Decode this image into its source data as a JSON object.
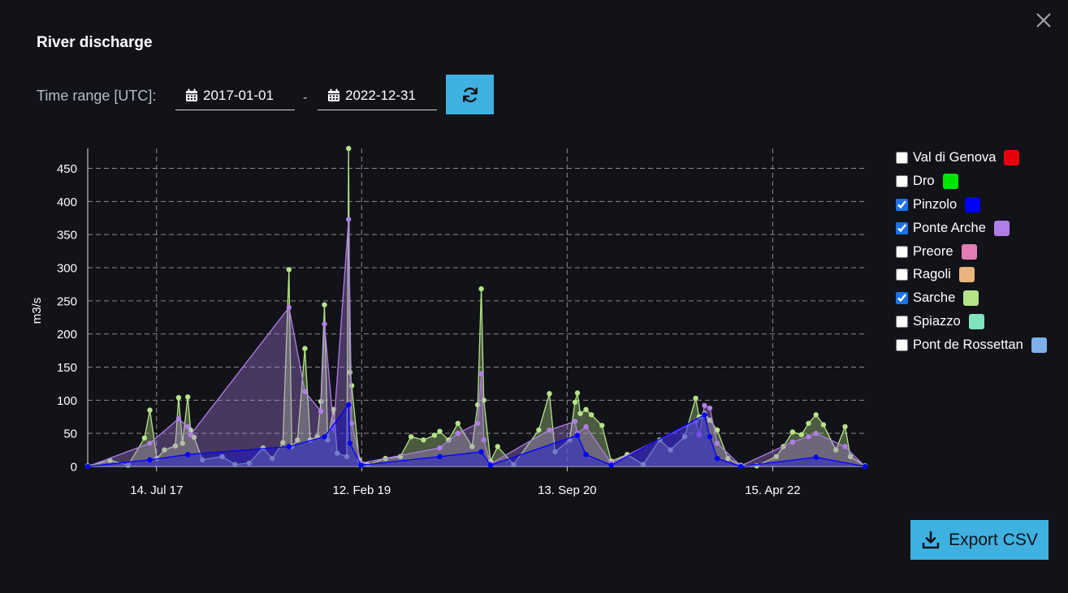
{
  "dialog": {
    "title": "River discharge",
    "close_icon": "close-icon"
  },
  "time_range": {
    "label": "Time range [UTC]:",
    "from": "2017-01-01",
    "to": "2022-12-31",
    "separator": "-",
    "calendar_icon": "calendar-icon",
    "refresh_icon": "refresh-icon"
  },
  "legend": {
    "items": [
      {
        "label": "Val di Genova",
        "checked": false,
        "color": "#e8000b"
      },
      {
        "label": "Dro",
        "checked": false,
        "color": "#00e400"
      },
      {
        "label": "Pinzolo",
        "checked": true,
        "color": "#0000ff"
      },
      {
        "label": "Ponte Arche",
        "checked": true,
        "color": "#b07ee6"
      },
      {
        "label": "Preore",
        "checked": false,
        "color": "#e37bb5"
      },
      {
        "label": "Ragoli",
        "checked": false,
        "color": "#eab37d"
      },
      {
        "label": "Sarche",
        "checked": true,
        "color": "#b5e487"
      },
      {
        "label": "Spiazzo",
        "checked": false,
        "color": "#7fe3bd"
      },
      {
        "label": "Pont de Rossettan",
        "checked": false,
        "color": "#7eb1eb"
      }
    ]
  },
  "export": {
    "label": "Export CSV",
    "icon": "download-icon"
  },
  "chart_data": {
    "type": "line",
    "title": "",
    "xlabel": "",
    "ylabel": "m3/s",
    "x_range": [
      "2017-01-01",
      "2022-12-31"
    ],
    "ylim": [
      0,
      480
    ],
    "yticks": [
      0,
      50,
      100,
      150,
      200,
      250,
      300,
      350,
      400,
      450
    ],
    "xticks": [
      {
        "date": "2017-07-14",
        "label": "14. Jul 17"
      },
      {
        "date": "2019-02-12",
        "label": "12. Feb 19"
      },
      {
        "date": "2020-09-13",
        "label": "13. Sep 20"
      },
      {
        "date": "2022-04-15",
        "label": "15. Apr 22"
      }
    ],
    "grid": true,
    "legend_position": "right",
    "series": [
      {
        "name": "Sarche",
        "color": "#b5e487",
        "points": [
          [
            "2017-01-01",
            1
          ],
          [
            "2017-03-05",
            9
          ],
          [
            "2017-04-25",
            2
          ],
          [
            "2017-06-10",
            43
          ],
          [
            "2017-06-25",
            85
          ],
          [
            "2017-07-15",
            12
          ],
          [
            "2017-08-05",
            25
          ],
          [
            "2017-09-05",
            31
          ],
          [
            "2017-09-14",
            104
          ],
          [
            "2017-09-25",
            35
          ],
          [
            "2017-10-10",
            105
          ],
          [
            "2017-10-18",
            55
          ],
          [
            "2017-10-28",
            44
          ],
          [
            "2017-11-20",
            10
          ],
          [
            "2018-01-15",
            15
          ],
          [
            "2018-02-20",
            3
          ],
          [
            "2018-04-01",
            5
          ],
          [
            "2018-05-10",
            28
          ],
          [
            "2018-06-05",
            12
          ],
          [
            "2018-07-05",
            36
          ],
          [
            "2018-07-22",
            297
          ],
          [
            "2018-07-30",
            30
          ],
          [
            "2018-08-15",
            40
          ],
          [
            "2018-09-05",
            178
          ],
          [
            "2018-09-20",
            40
          ],
          [
            "2018-10-10",
            45
          ],
          [
            "2018-10-20",
            98
          ],
          [
            "2018-10-30",
            244
          ],
          [
            "2018-11-08",
            40
          ],
          [
            "2018-11-25",
            86
          ],
          [
            "2018-12-05",
            20
          ],
          [
            "2019-01-01",
            15
          ],
          [
            "2019-01-06",
            480
          ],
          [
            "2019-01-10",
            142
          ],
          [
            "2019-01-15",
            122
          ],
          [
            "2019-02-05",
            10
          ],
          [
            "2019-03-01",
            3
          ],
          [
            "2019-04-20",
            12
          ],
          [
            "2019-06-01",
            15
          ],
          [
            "2019-07-01",
            45
          ],
          [
            "2019-08-05",
            40
          ],
          [
            "2019-09-05",
            47
          ],
          [
            "2019-09-20",
            53
          ],
          [
            "2019-10-15",
            40
          ],
          [
            "2019-11-10",
            65
          ],
          [
            "2019-12-20",
            30
          ],
          [
            "2020-01-05",
            93
          ],
          [
            "2020-01-15",
            268
          ],
          [
            "2020-01-22",
            100
          ],
          [
            "2020-02-10",
            8
          ],
          [
            "2020-03-01",
            30
          ],
          [
            "2020-04-15",
            3
          ],
          [
            "2020-06-25",
            55
          ],
          [
            "2020-07-25",
            110
          ],
          [
            "2020-08-10",
            22
          ],
          [
            "2020-09-20",
            40
          ],
          [
            "2020-10-05",
            97
          ],
          [
            "2020-10-12",
            111
          ],
          [
            "2020-10-20",
            80
          ],
          [
            "2020-11-05",
            86
          ],
          [
            "2020-11-20",
            78
          ],
          [
            "2020-12-20",
            62
          ],
          [
            "2021-01-15",
            8
          ],
          [
            "2021-03-01",
            18
          ],
          [
            "2021-04-15",
            3
          ],
          [
            "2021-06-01",
            40
          ],
          [
            "2021-07-01",
            25
          ],
          [
            "2021-08-10",
            45
          ],
          [
            "2021-09-10",
            103
          ],
          [
            "2021-09-20",
            75
          ],
          [
            "2021-10-05",
            80
          ],
          [
            "2021-10-20",
            70
          ],
          [
            "2021-11-10",
            55
          ],
          [
            "2021-12-10",
            12
          ],
          [
            "2022-01-15",
            2
          ],
          [
            "2022-03-01",
            1
          ],
          [
            "2022-04-25",
            15
          ],
          [
            "2022-05-15",
            30
          ],
          [
            "2022-06-10",
            52
          ],
          [
            "2022-07-05",
            48
          ],
          [
            "2022-07-25",
            65
          ],
          [
            "2022-08-15",
            78
          ],
          [
            "2022-09-05",
            63
          ],
          [
            "2022-10-10",
            25
          ],
          [
            "2022-11-05",
            60
          ],
          [
            "2022-11-20",
            15
          ],
          [
            "2022-12-31",
            1
          ]
        ]
      },
      {
        "name": "Ponte Arche",
        "color": "#b07ee6",
        "points": [
          [
            "2017-01-01",
            0
          ],
          [
            "2017-06-25",
            35
          ],
          [
            "2017-09-14",
            72
          ],
          [
            "2017-10-10",
            60
          ],
          [
            "2017-10-18",
            48
          ],
          [
            "2018-07-22",
            240
          ],
          [
            "2018-09-05",
            113
          ],
          [
            "2018-10-20",
            83
          ],
          [
            "2018-10-30",
            215
          ],
          [
            "2018-11-25",
            57
          ],
          [
            "2019-01-06",
            373
          ],
          [
            "2019-01-15",
            65
          ],
          [
            "2019-02-10",
            5
          ],
          [
            "2019-09-20",
            28
          ],
          [
            "2019-11-10",
            50
          ],
          [
            "2020-01-05",
            65
          ],
          [
            "2020-01-15",
            140
          ],
          [
            "2020-01-22",
            40
          ],
          [
            "2020-02-10",
            4
          ],
          [
            "2020-07-25",
            55
          ],
          [
            "2020-10-05",
            68
          ],
          [
            "2020-10-12",
            50
          ],
          [
            "2020-11-05",
            60
          ],
          [
            "2021-01-15",
            5
          ],
          [
            "2021-09-10",
            68
          ],
          [
            "2021-09-20",
            48
          ],
          [
            "2021-10-05",
            92
          ],
          [
            "2021-10-20",
            88
          ],
          [
            "2021-11-10",
            35
          ],
          [
            "2022-01-15",
            1
          ],
          [
            "2022-06-10",
            37
          ],
          [
            "2022-07-25",
            45
          ],
          [
            "2022-08-15",
            50
          ],
          [
            "2022-11-05",
            30
          ],
          [
            "2022-12-31",
            0
          ]
        ]
      },
      {
        "name": "Pinzolo",
        "color": "#0000ff",
        "points": [
          [
            "2017-01-01",
            0
          ],
          [
            "2017-06-25",
            10
          ],
          [
            "2017-10-10",
            18
          ],
          [
            "2018-07-22",
            30
          ],
          [
            "2018-10-30",
            45
          ],
          [
            "2019-01-06",
            93
          ],
          [
            "2019-01-10",
            35
          ],
          [
            "2019-02-10",
            2
          ],
          [
            "2019-09-20",
            15
          ],
          [
            "2020-01-15",
            22
          ],
          [
            "2020-02-10",
            2
          ],
          [
            "2020-10-12",
            47
          ],
          [
            "2020-11-05",
            18
          ],
          [
            "2021-01-15",
            2
          ],
          [
            "2021-10-05",
            78
          ],
          [
            "2021-10-20",
            45
          ],
          [
            "2021-11-10",
            12
          ],
          [
            "2022-01-15",
            0
          ],
          [
            "2022-08-15",
            14
          ],
          [
            "2022-12-31",
            0
          ]
        ]
      }
    ]
  }
}
